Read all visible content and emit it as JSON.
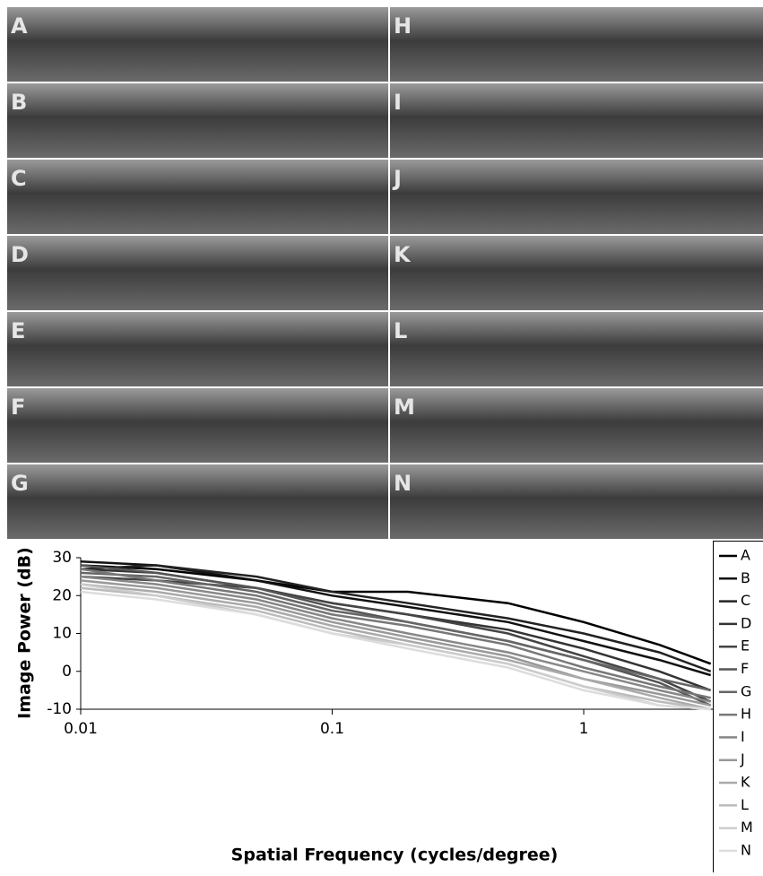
{
  "panels": [
    {
      "label": "A"
    },
    {
      "label": "B"
    },
    {
      "label": "C"
    },
    {
      "label": "D"
    },
    {
      "label": "E"
    },
    {
      "label": "F"
    },
    {
      "label": "G"
    },
    {
      "label": "H"
    },
    {
      "label": "I"
    },
    {
      "label": "J"
    },
    {
      "label": "K"
    },
    {
      "label": "L"
    },
    {
      "label": "M"
    },
    {
      "label": "N"
    }
  ],
  "chart_data": {
    "type": "line",
    "x_label": "Spatial Frequency (cycles/degree)",
    "y_label": "Image Power (dB)",
    "x": [
      0.01,
      0.02,
      0.05,
      0.1,
      0.2,
      0.5,
      1,
      2,
      3.2
    ],
    "xlim": [
      0.01,
      3.26
    ],
    "xscale": "log",
    "xticks": [
      0.01,
      0.1,
      1
    ],
    "ylim": [
      -10,
      30
    ],
    "yticks": [
      -10,
      0,
      10,
      20,
      30
    ],
    "legend": "right",
    "series": [
      {
        "name": "A",
        "color": "#000000",
        "values": [
          28,
          27,
          24,
          21,
          21,
          18,
          13,
          7,
          2
        ]
      },
      {
        "name": "B",
        "color": "#111111",
        "values": [
          29,
          28,
          24,
          20,
          17,
          13,
          8,
          3,
          -1
        ]
      },
      {
        "name": "C",
        "color": "#222222",
        "values": [
          27,
          28,
          25,
          21,
          18,
          14,
          10,
          5,
          0
        ]
      },
      {
        "name": "D",
        "color": "#333333",
        "values": [
          27,
          26,
          22,
          18,
          15,
          11,
          6,
          0,
          -5
        ]
      },
      {
        "name": "E",
        "color": "#444444",
        "values": [
          25,
          24,
          22,
          18,
          15,
          10,
          4,
          -2,
          -8
        ]
      },
      {
        "name": "F",
        "color": "#555555",
        "values": [
          28,
          26,
          22,
          17,
          13,
          8,
          3,
          -3,
          -9
        ]
      },
      {
        "name": "G",
        "color": "#666666",
        "values": [
          26,
          25,
          21,
          16,
          13,
          8,
          3,
          -2,
          -5
        ]
      },
      {
        "name": "H",
        "color": "#777777",
        "values": [
          27,
          24,
          20,
          15,
          12,
          7,
          1,
          -4,
          -7
        ]
      },
      {
        "name": "I",
        "color": "#888888",
        "values": [
          25,
          23,
          19,
          14,
          10,
          5,
          0,
          -5,
          -8
        ]
      },
      {
        "name": "J",
        "color": "#999999",
        "values": [
          24,
          22,
          18,
          13,
          9,
          4,
          -2,
          -6,
          -9
        ]
      },
      {
        "name": "K",
        "color": "#aaaaaa",
        "values": [
          23,
          21,
          17,
          12,
          8,
          3,
          -2,
          -7,
          -10
        ]
      },
      {
        "name": "L",
        "color": "#bbbbbb",
        "values": [
          22,
          20,
          16,
          11,
          7,
          2,
          -4,
          -8,
          -10
        ]
      },
      {
        "name": "M",
        "color": "#cccccc",
        "values": [
          23,
          20,
          15,
          10,
          7,
          2,
          -4,
          -9,
          -10
        ]
      },
      {
        "name": "N",
        "color": "#dddddd",
        "values": [
          21,
          19,
          15,
          10,
          6,
          1,
          -5,
          -9,
          -10
        ]
      }
    ]
  }
}
